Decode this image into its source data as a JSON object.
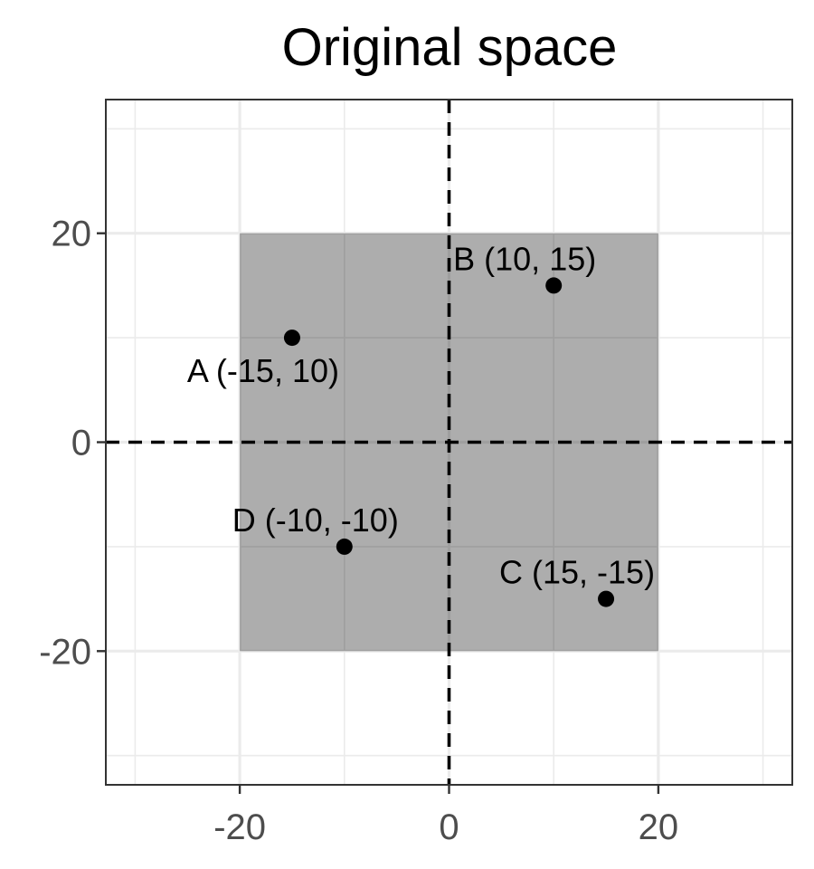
{
  "chart_data": {
    "type": "scatter",
    "title": "Original space",
    "xlabel": "",
    "ylabel": "",
    "xlim": [
      -32.8,
      32.8
    ],
    "ylim": [
      -32.8,
      32.8
    ],
    "x_ticks": [
      -20,
      0,
      20
    ],
    "y_ticks": [
      -20,
      0,
      20
    ],
    "x_tick_labels": [
      "-20",
      "0",
      "20"
    ],
    "y_tick_labels": [
      "-20",
      "0",
      "20"
    ],
    "grid": true,
    "minor_grid": [
      -30,
      -10,
      10,
      30
    ],
    "reference_lines": {
      "x": 0,
      "y": 0,
      "style": "dashed"
    },
    "shaded_region": {
      "x": [
        -20,
        20
      ],
      "y": [
        -20,
        20
      ],
      "color": "#adadad"
    },
    "points": [
      {
        "label": "A (-15, 10)",
        "x": -15,
        "y": 10,
        "label_position": "below"
      },
      {
        "label": "B (10, 15)",
        "x": 10,
        "y": 15,
        "label_position": "above"
      },
      {
        "label": "C (15, -15)",
        "x": 15,
        "y": -15,
        "label_position": "above"
      },
      {
        "label": "D (-10, -10)",
        "x": -10,
        "y": -10,
        "label_position": "above"
      }
    ],
    "colors": {
      "point": "#000000",
      "panel_border": "#333333",
      "grid": "#ebebeb",
      "tick_text": "#4d4d4d"
    }
  }
}
